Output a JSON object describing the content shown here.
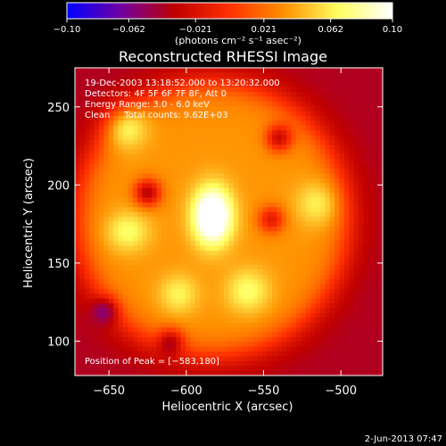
{
  "colorbar": {
    "tick_labels": [
      "−0.10",
      "−0.062",
      "−0.021",
      "0.021",
      "0.062",
      "0.10"
    ],
    "tick_values": [
      -0.1,
      -0.062,
      -0.021,
      0.021,
      0.062,
      0.1
    ],
    "range": [
      -0.1,
      0.1
    ],
    "units": "(photons cm⁻² s⁻¹ asec⁻²)",
    "colors": [
      "#0000ff",
      "#7000a0",
      "#c00000",
      "#ff3000",
      "#ff9000",
      "#ffff60",
      "#ffffff"
    ]
  },
  "chart_data": {
    "type": "heatmap",
    "title": "Reconstructed RHESSI Image",
    "xlabel": "Heliocentric X (arcsec)",
    "ylabel": "Heliocentric Y (arcsec)",
    "xlim": [
      -672,
      -473
    ],
    "ylim": [
      78,
      275
    ],
    "x_ticks": [
      -650,
      -600,
      -550,
      -500
    ],
    "y_ticks": [
      100,
      150,
      200,
      250
    ],
    "x_tick_labels": [
      "−650",
      "−600",
      "−550",
      "−500"
    ],
    "y_tick_labels": [
      "100",
      "150",
      "200",
      "250"
    ],
    "annotations": [
      "19-Dec-2003 13:18:52.000 to 13:20:32.000",
      "Detectors: 4F 5F 6F 7F 8F, Att 0",
      "Energy Range: 3.0 - 6.0 keV",
      "Clean     Total counts: 9.62E+03"
    ],
    "peak_label": "Position of Peak = [−583,180]",
    "peak": [
      -583,
      180
    ],
    "background_level": -0.04,
    "emission_region": {
      "center": [
        -583,
        178
      ],
      "radius": 88,
      "level": 0.035
    },
    "sources": [
      {
        "x": -583,
        "y": 180,
        "sx": 9,
        "sy": 13,
        "level": 0.1
      },
      {
        "x": -640,
        "y": 238,
        "sx": 10,
        "sy": 10,
        "level": 0.045
      },
      {
        "x": -638,
        "y": 170,
        "sx": 10,
        "sy": 9,
        "level": 0.035
      },
      {
        "x": -560,
        "y": 132,
        "sx": 10,
        "sy": 10,
        "level": 0.035
      },
      {
        "x": -605,
        "y": 130,
        "sx": 9,
        "sy": 9,
        "level": 0.03
      },
      {
        "x": -515,
        "y": 188,
        "sx": 10,
        "sy": 10,
        "level": 0.03
      }
    ],
    "holes": [
      {
        "x": -625,
        "y": 195,
        "sx": 6,
        "sy": 6,
        "level": -0.07
      },
      {
        "x": -540,
        "y": 230,
        "sx": 6,
        "sy": 6,
        "level": -0.06
      },
      {
        "x": -545,
        "y": 178,
        "sx": 6,
        "sy": 6,
        "level": -0.05
      },
      {
        "x": -610,
        "y": 100,
        "sx": 6,
        "sy": 6,
        "level": -0.05
      },
      {
        "x": -652,
        "y": 120,
        "sx": 6,
        "sy": 6,
        "level": -0.045
      }
    ]
  },
  "footer": {
    "date": "2-Jun-2013 07:47"
  }
}
